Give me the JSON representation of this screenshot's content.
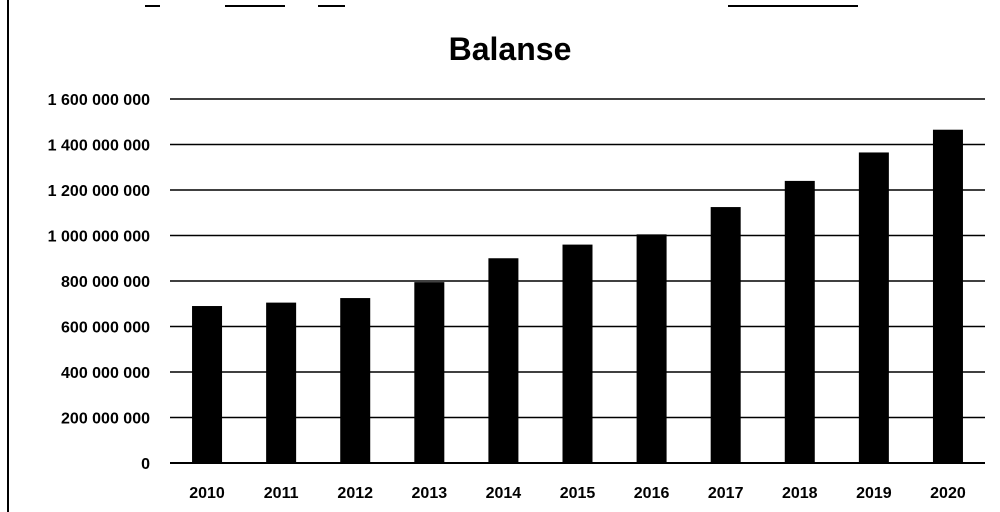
{
  "chart_data": {
    "type": "bar",
    "title": "Balanse",
    "xlabel": "",
    "ylabel": "",
    "categories": [
      "2010",
      "2011",
      "2012",
      "2013",
      "2014",
      "2015",
      "2016",
      "2017",
      "2018",
      "2019",
      "2020"
    ],
    "values": [
      690000000,
      705000000,
      725000000,
      795000000,
      900000000,
      960000000,
      1005000000,
      1125000000,
      1240000000,
      1365000000,
      1465000000
    ],
    "ylim": [
      0,
      1600000000
    ],
    "yticks": [
      0,
      200000000,
      400000000,
      600000000,
      800000000,
      1000000000,
      1200000000,
      1400000000,
      1600000000
    ],
    "ytick_labels": [
      "0",
      "200 000 000",
      "400 000 000",
      "600 000 000",
      "800 000 000",
      "1 000 000 000",
      "1 200 000 000",
      "1 400 000 000",
      "1 600 000 000"
    ],
    "grid": true,
    "legend": "none",
    "bar_color": "#000000"
  }
}
